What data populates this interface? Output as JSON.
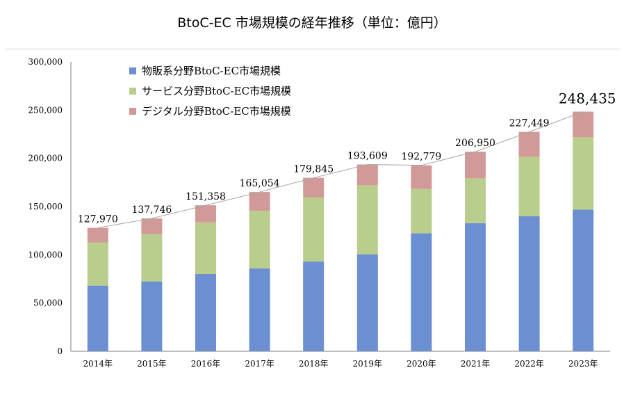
{
  "chart_data": {
    "type": "bar",
    "stacked": true,
    "title": "BtoC-EC 市場規模の経年推移（単位：億円）",
    "categories": [
      "2014年",
      "2015年",
      "2016年",
      "2017年",
      "2018年",
      "2019年",
      "2020年",
      "2021年",
      "2022年",
      "2023年"
    ],
    "series": [
      {
        "name": "物販系分野BtoC-EC市場規模",
        "color": "#6b8fd1",
        "values": [
          68042,
          72398,
          80043,
          86008,
          92992,
          100515,
          122333,
          132865,
          139997,
          146760
        ]
      },
      {
        "name": "サービス分野BtoC-EC市場規模",
        "color": "#b9cd8c",
        "values": [
          44816,
          49014,
          53532,
          59568,
          66471,
          71672,
          45832,
          46424,
          61477,
          75169
        ]
      },
      {
        "name": "デジタル分野BtoC-EC市場規模",
        "color": "#d19a98",
        "values": [
          15112,
          16334,
          17783,
          19478,
          20382,
          21422,
          24614,
          27661,
          25975,
          26506
        ]
      }
    ],
    "totals": [
      127970,
      137746,
      151358,
      165054,
      179845,
      193609,
      192779,
      206950,
      227449,
      248435
    ],
    "total_labels": [
      "127,970",
      "137,746",
      "151,358",
      "165,054",
      "179,845",
      "193,609",
      "192,779",
      "206,950",
      "227,449",
      "248,435"
    ],
    "yticks": [
      "0",
      "50,000",
      "100,000",
      "150,000",
      "200,000",
      "250,000",
      "300,000"
    ],
    "ylim": [
      0,
      300000
    ],
    "legend_position": "top-left",
    "grid": false
  }
}
